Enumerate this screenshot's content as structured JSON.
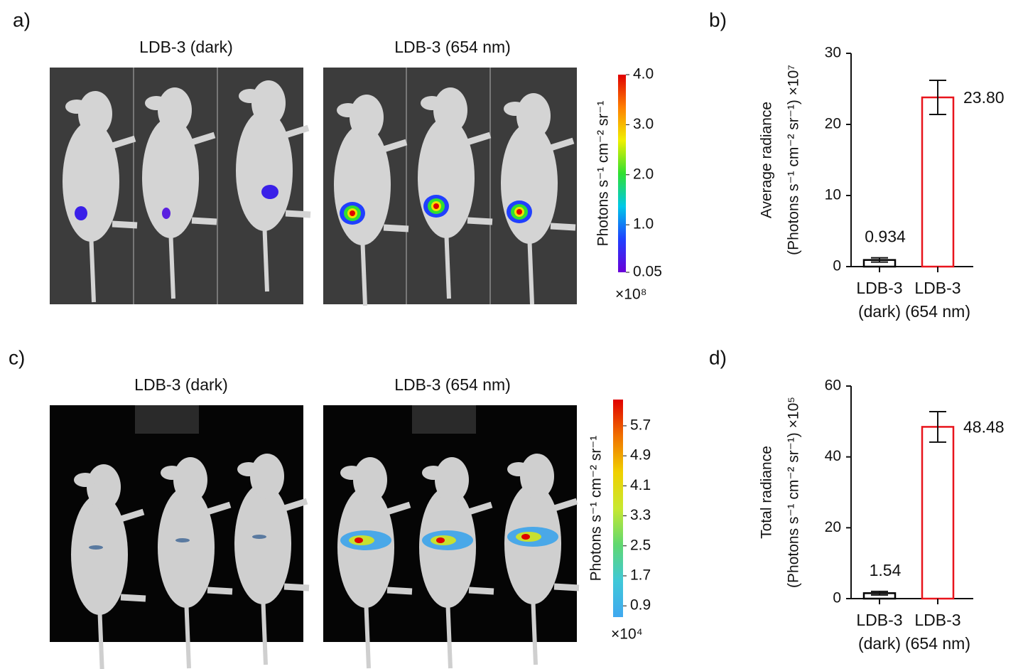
{
  "panels": [
    "a)",
    "b)",
    "c)",
    "d)"
  ],
  "images": [
    {
      "title": "LDB-3 (dark)"
    },
    {
      "title": "LDB-3 (654 nm)"
    },
    {
      "title": "LDB-3 (dark)"
    },
    {
      "title": "LDB-3 (654 nm)"
    }
  ],
  "colorbars": [
    {
      "label": "Photons s⁻¹ cm⁻² sr⁻¹",
      "multiplier": "×10⁸",
      "lim": [
        0.05,
        4.0
      ],
      "colors": [
        "#6a00d8",
        "#2040ff",
        "#00c8e8",
        "#30e030",
        "#f0f000",
        "#ff8000",
        "#e00000"
      ],
      "ticks": [
        {
          "value": 4,
          "label": "4.0"
        },
        {
          "value": 3,
          "label": "3.0"
        },
        {
          "value": 2,
          "label": "2.0"
        },
        {
          "value": 1,
          "label": "1.0"
        },
        0.05
      ]
    },
    {
      "label": "Photons s⁻¹ cm⁻² sr⁻¹",
      "multiplier": "×10⁴",
      "lim": [
        0.6,
        6.4
      ],
      "colors": [
        "#40a8f0",
        "#40c8d8",
        "#60d870",
        "#c8e830",
        "#f0d000",
        "#f07000",
        "#e00000"
      ],
      "ticks": [
        5.7,
        4.9,
        4.1,
        3.3,
        2.5,
        1.7,
        0.9
      ]
    }
  ],
  "chart_data": [
    {
      "type": "bar",
      "ylabel": "Average radiance",
      "ylabel_units": "(Photons s⁻¹ cm⁻² sr⁻¹) ×10⁷",
      "categories": [
        [
          "LDB-3",
          "(dark)"
        ],
        [
          "LDB-3",
          "(654 nm)"
        ]
      ],
      "values": [
        0.934,
        23.8
      ],
      "value_labels": [
        "0.934",
        "23.80"
      ],
      "errors": [
        0.3,
        2.4
      ],
      "colors": [
        "#000000",
        "#e8141c"
      ],
      "ylim": [
        0,
        30
      ],
      "yticks": [
        0,
        10,
        20,
        30
      ]
    },
    {
      "type": "bar",
      "ylabel": "Total radiance",
      "ylabel_units": "(Photons s⁻¹ cm⁻² sr⁻¹) ×10⁵",
      "categories": [
        [
          "LDB-3",
          "(dark)"
        ],
        [
          "LDB-3",
          "(654 nm)"
        ]
      ],
      "values": [
        1.54,
        48.48
      ],
      "value_labels": [
        "1.54",
        "48.48"
      ],
      "errors": [
        0.5,
        4.3
      ],
      "colors": [
        "#000000",
        "#e8141c"
      ],
      "ylim": [
        0,
        60
      ],
      "yticks": [
        0,
        20,
        40,
        60
      ]
    }
  ]
}
